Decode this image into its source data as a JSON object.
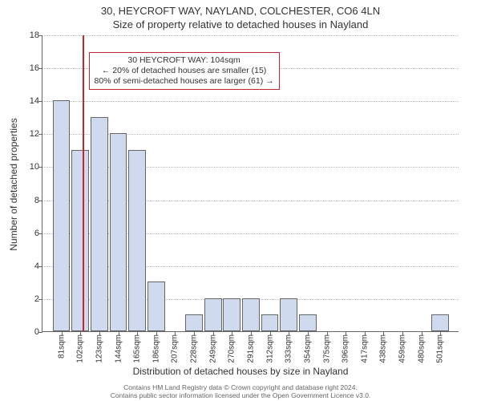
{
  "title": {
    "line1": "30, HEYCROFT WAY, NAYLAND, COLCHESTER, CO6 4LN",
    "line2": "Size of property relative to detached houses in Nayland"
  },
  "axes": {
    "ylabel": "Number of detached properties",
    "xlabel": "Distribution of detached houses by size in Nayland",
    "ylim": [
      0,
      18
    ],
    "ytick_step": 2,
    "tick_fontsize": 11,
    "label_fontsize": 12
  },
  "bars": {
    "x_start": 81,
    "x_step": 21,
    "values": [
      14,
      11,
      13,
      12,
      11,
      3,
      0,
      1,
      2,
      2,
      2,
      1,
      2,
      1,
      0,
      0,
      0,
      0,
      0,
      0,
      1
    ],
    "fill_color": "#cfdaef",
    "border_color": "#666666",
    "x_unit": "sqm"
  },
  "marker": {
    "x_value": 104,
    "color": "#c1272d"
  },
  "annotation": {
    "line1": "30 HEYCROFT WAY: 104sqm",
    "line2": "← 20% of detached houses are smaller (15)",
    "line3": "80% of semi-detached houses are larger (61) →",
    "border_color": "#c1272d",
    "background_color": "#ffffff",
    "fontsize": 10.5
  },
  "footer": {
    "line1": "Contains HM Land Registry data © Crown copyright and database right 2024.",
    "line2": "Contains public sector information licensed under the Open Government Licence v3.0."
  },
  "chart_style": {
    "background_color": "#ffffff",
    "grid_color": "#bbbbbb"
  }
}
